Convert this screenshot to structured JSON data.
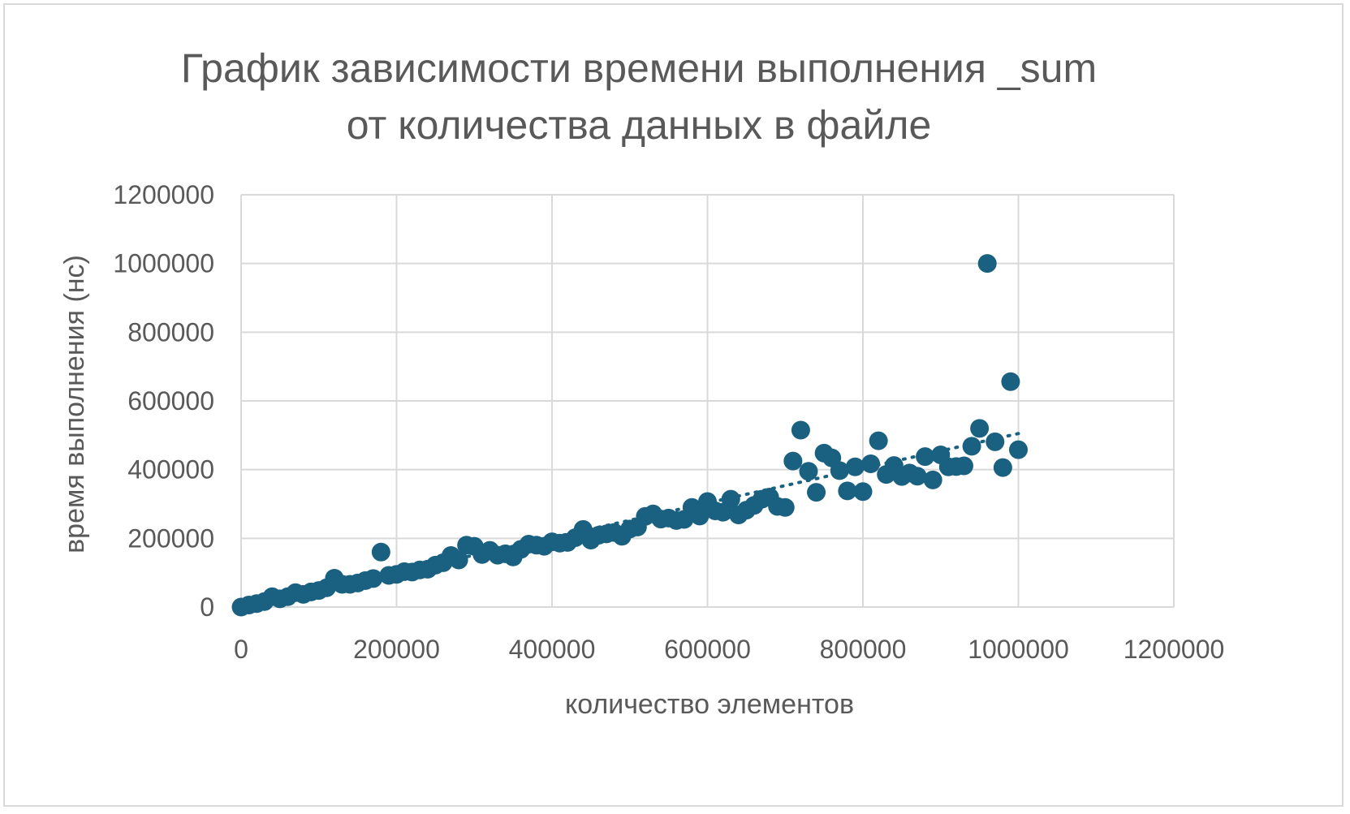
{
  "chart_data": {
    "type": "scatter",
    "title_lines": [
      "График зависимости времени выполнения _sum",
      "от количества данных в файле"
    ],
    "xlabel": "количество элементов",
    "ylabel": "время выполнения (нс)",
    "xlim": [
      0,
      1200000
    ],
    "ylim": [
      0,
      1200000
    ],
    "x_ticks": [
      0,
      200000,
      400000,
      600000,
      800000,
      1000000,
      1200000
    ],
    "y_ticks": [
      0,
      200000,
      400000,
      600000,
      800000,
      1000000,
      1200000
    ],
    "grid": true,
    "legend": false,
    "marker_color": "#1a6080",
    "trendline": {
      "type": "linear",
      "style": "dotted",
      "x": [
        0,
        1000000
      ],
      "y": [
        0,
        505000
      ]
    },
    "points": [
      [
        0,
        0
      ],
      [
        10000,
        6000
      ],
      [
        20000,
        10000
      ],
      [
        30000,
        16000
      ],
      [
        40000,
        30000
      ],
      [
        50000,
        24000
      ],
      [
        60000,
        30000
      ],
      [
        70000,
        42000
      ],
      [
        80000,
        37000
      ],
      [
        90000,
        44000
      ],
      [
        100000,
        48000
      ],
      [
        110000,
        56000
      ],
      [
        120000,
        84000
      ],
      [
        130000,
        66000
      ],
      [
        140000,
        66000
      ],
      [
        150000,
        70000
      ],
      [
        160000,
        77000
      ],
      [
        170000,
        83000
      ],
      [
        180000,
        160000
      ],
      [
        190000,
        92000
      ],
      [
        200000,
        95000
      ],
      [
        210000,
        103000
      ],
      [
        220000,
        102000
      ],
      [
        230000,
        108000
      ],
      [
        240000,
        110000
      ],
      [
        250000,
        122000
      ],
      [
        260000,
        129000
      ],
      [
        270000,
        150000
      ],
      [
        280000,
        137000
      ],
      [
        290000,
        180000
      ],
      [
        300000,
        177000
      ],
      [
        310000,
        153000
      ],
      [
        320000,
        165000
      ],
      [
        330000,
        151000
      ],
      [
        340000,
        155000
      ],
      [
        350000,
        146000
      ],
      [
        360000,
        168000
      ],
      [
        370000,
        183000
      ],
      [
        380000,
        180000
      ],
      [
        390000,
        177000
      ],
      [
        400000,
        190000
      ],
      [
        410000,
        186000
      ],
      [
        420000,
        188000
      ],
      [
        430000,
        202000
      ],
      [
        440000,
        226000
      ],
      [
        450000,
        195000
      ],
      [
        460000,
        209000
      ],
      [
        470000,
        213000
      ],
      [
        480000,
        217000
      ],
      [
        490000,
        206000
      ],
      [
        500000,
        227000
      ],
      [
        510000,
        233000
      ],
      [
        520000,
        264000
      ],
      [
        530000,
        271000
      ],
      [
        540000,
        256000
      ],
      [
        550000,
        259000
      ],
      [
        560000,
        252000
      ],
      [
        570000,
        255000
      ],
      [
        580000,
        290000
      ],
      [
        590000,
        265000
      ],
      [
        600000,
        307000
      ],
      [
        610000,
        280000
      ],
      [
        620000,
        276000
      ],
      [
        630000,
        314000
      ],
      [
        640000,
        268000
      ],
      [
        650000,
        282000
      ],
      [
        660000,
        296000
      ],
      [
        670000,
        314000
      ],
      [
        680000,
        320000
      ],
      [
        690000,
        293000
      ],
      [
        700000,
        290000
      ],
      [
        710000,
        425000
      ],
      [
        720000,
        515000
      ],
      [
        730000,
        395000
      ],
      [
        740000,
        334000
      ],
      [
        750000,
        448000
      ],
      [
        760000,
        434000
      ],
      [
        770000,
        397000
      ],
      [
        780000,
        338000
      ],
      [
        790000,
        408000
      ],
      [
        800000,
        336000
      ],
      [
        810000,
        417000
      ],
      [
        820000,
        484000
      ],
      [
        830000,
        386000
      ],
      [
        840000,
        412000
      ],
      [
        850000,
        380000
      ],
      [
        860000,
        390000
      ],
      [
        870000,
        381000
      ],
      [
        880000,
        438000
      ],
      [
        890000,
        370000
      ],
      [
        900000,
        443000
      ],
      [
        910000,
        408000
      ],
      [
        920000,
        409000
      ],
      [
        930000,
        411000
      ],
      [
        940000,
        468000
      ],
      [
        950000,
        520000
      ],
      [
        960000,
        1000000
      ],
      [
        970000,
        481000
      ],
      [
        980000,
        406000
      ],
      [
        990000,
        656000
      ],
      [
        1000000,
        458000
      ]
    ]
  }
}
